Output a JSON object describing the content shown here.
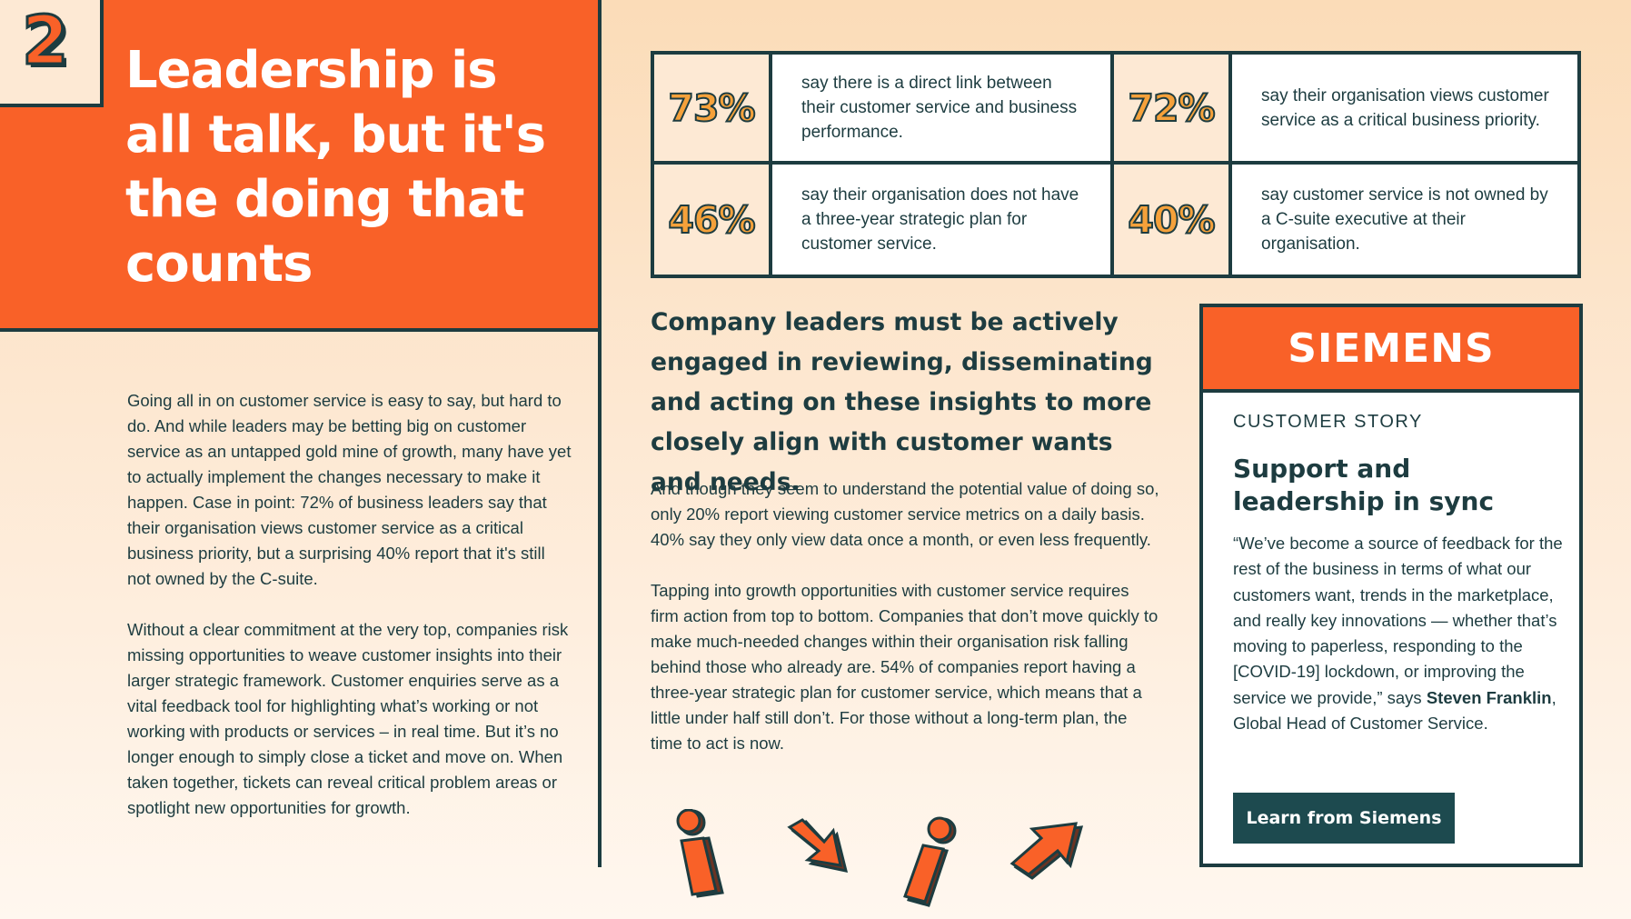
{
  "section": {
    "number": "2",
    "title": "Leadership is all talk, but it's the doing that counts"
  },
  "left_body": {
    "p1": "Going all in on customer service is easy to say, but hard to do. And while leaders may be betting big on customer service as an untapped gold mine of growth, many have yet to actually implement the changes necessary to make it happen. Case in point: 72% of business leaders say that their organisation views customer service as a critical business priority, but a surprising 40% report that it's still not owned by the C-suite.",
    "p2": "Without a clear commitment at the very top, companies risk missing opportunities to weave customer insights into their larger strategic framework. Customer enquiries serve as a vital feedback tool for highlighting what’s working or not working with products or services – in real time. But it’s no longer enough to simply close a ticket and move on. When taken together, tickets can reveal critical problem areas or spotlight new opportunities for growth."
  },
  "stats": [
    {
      "value": "73%",
      "text": "say there is a direct link between their customer service and business performance."
    },
    {
      "value": "72%",
      "text": "say their organisation views customer service as a critical business priority."
    },
    {
      "value": "46%",
      "text": "say their organisation does not have a three-year strategic plan for customer service."
    },
    {
      "value": "40%",
      "text": "say customer service is not owned by a C-suite executive at their organisation."
    }
  ],
  "pull_quote": "Company leaders must be actively engaged in reviewing, disseminating and acting on these insights to more closely align with customer wants and needs.",
  "mid_body": {
    "p1": "And though they seem to understand the potential value of doing so, only 20% report viewing customer service metrics on a daily basis. 40% say they only view data once a month, or even less frequently.",
    "p2": "Tapping into growth opportunities with customer service requires firm action from top to bottom. Companies that don’t move quickly to make much-needed changes within their organisation risk falling behind those who already are. 54% of companies report having a three-year strategic plan for customer service, which means that a little under half still don’t. For those without a long-term plan, the time to act is now."
  },
  "card": {
    "brand": "SIEMENS",
    "tag": "CUSTOMER STORY",
    "title": "Support and leadership in sync",
    "quote_start": "“We’ve become a source of feedback for the rest of the business in terms of what our customers want, trends in the marketplace, and really key innovations — whether that’s moving to paperless, responding to the [COVID-19] lockdown, or improving the service we provide,” says ",
    "person": "Steven Franklin",
    "quote_end": ", Global Head of Customer Service.",
    "button": "Learn from Siemens"
  },
  "icons": [
    "person-icon",
    "arrow-down-right-icon",
    "person-leaning-icon",
    "arrow-up-right-icon"
  ],
  "colors": {
    "accent": "#f96128",
    "dark": "#1d3c40",
    "stat_fill": "#f5a13a",
    "button": "#1d4a4f"
  }
}
